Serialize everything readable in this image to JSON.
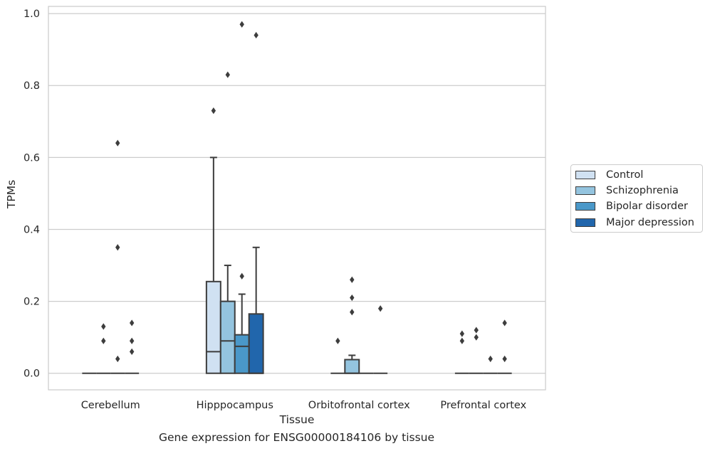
{
  "chart_data": {
    "type": "box",
    "xlabel": "Tissue",
    "ylabel": "TPMs",
    "caption": "Gene expression for ENSG00000184106 by tissue",
    "categories": [
      "Cerebellum",
      "Hipppocampus",
      "Orbitofrontal cortex",
      "Prefrontal cortex"
    ],
    "ylim": [
      -0.046,
      1.02
    ],
    "yticks": [
      "0.0",
      "0.2",
      "0.4",
      "0.6",
      "0.8",
      "1.0"
    ],
    "grid": true,
    "legend_position": "right",
    "series": [
      {
        "name": "Control",
        "color": "#d0e1f2",
        "boxes": [
          {
            "q1": 0,
            "median": 0,
            "q3": 0,
            "lo": 0,
            "hi": 0,
            "outliers": []
          },
          {
            "q1": 0,
            "median": 0.06,
            "q3": 0.255,
            "lo": 0,
            "hi": 0.6,
            "outliers": [
              0.73
            ]
          },
          {
            "q1": 0,
            "median": 0,
            "q3": 0,
            "lo": 0,
            "hi": 0,
            "outliers": [
              0.09
            ]
          },
          {
            "q1": 0,
            "median": 0,
            "q3": 0,
            "lo": 0,
            "hi": 0,
            "outliers": [
              0.11,
              0.09
            ]
          }
        ]
      },
      {
        "name": "Schizophrenia",
        "color": "#94c4df",
        "boxes": [
          {
            "q1": 0,
            "median": 0,
            "q3": 0,
            "lo": 0,
            "hi": 0,
            "outliers": [
              0.13,
              0.09
            ]
          },
          {
            "q1": 0,
            "median": 0.09,
            "q3": 0.2,
            "lo": 0,
            "hi": 0.3,
            "outliers": [
              0.83
            ]
          },
          {
            "q1": 0,
            "median": 0,
            "q3": 0.038,
            "lo": 0,
            "hi": 0.05,
            "outliers": [
              0.26,
              0.21,
              0.17
            ]
          },
          {
            "q1": 0,
            "median": 0,
            "q3": 0,
            "lo": 0,
            "hi": 0,
            "outliers": [
              0.12,
              0.1
            ]
          }
        ]
      },
      {
        "name": "Bipolar disorder",
        "color": "#4a98c9",
        "boxes": [
          {
            "q1": 0,
            "median": 0,
            "q3": 0,
            "lo": 0,
            "hi": 0,
            "outliers": [
              0.64,
              0.35,
              0.04
            ]
          },
          {
            "q1": 0,
            "median": 0.075,
            "q3": 0.107,
            "lo": 0,
            "hi": 0.22,
            "outliers": [
              0.27,
              0.97
            ]
          },
          {
            "q1": 0,
            "median": 0,
            "q3": 0,
            "lo": 0,
            "hi": 0,
            "outliers": []
          },
          {
            "q1": 0,
            "median": 0,
            "q3": 0,
            "lo": 0,
            "hi": 0,
            "outliers": [
              0.04
            ]
          }
        ]
      },
      {
        "name": "Major depression",
        "color": "#2166ac",
        "boxes": [
          {
            "q1": 0,
            "median": 0,
            "q3": 0,
            "lo": 0,
            "hi": 0,
            "outliers": [
              0.14,
              0.09,
              0.06
            ]
          },
          {
            "q1": 0,
            "median": 0,
            "q3": 0.165,
            "lo": 0,
            "hi": 0.35,
            "outliers": [
              0.94
            ]
          },
          {
            "q1": 0,
            "median": 0,
            "q3": 0,
            "lo": 0,
            "hi": 0,
            "outliers": [
              0.18
            ]
          },
          {
            "q1": 0,
            "median": 0,
            "q3": 0,
            "lo": 0,
            "hi": 0,
            "outliers": [
              0.14,
              0.04
            ]
          }
        ]
      }
    ]
  }
}
